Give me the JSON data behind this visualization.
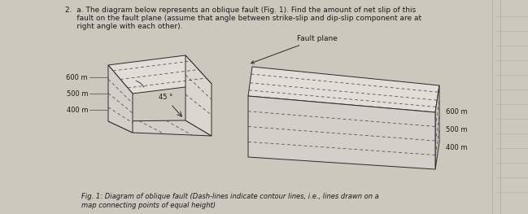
{
  "title_line1": "2.  a. The diagram below represents an oblique fault (Fig. 1). Find the amount of net slip of this",
  "title_line2": "     fault on the fault plane (assume that angle between strike-slip and dip-slip component are at",
  "title_line3": "     right angle with each other).",
  "fig_caption_line1": "Fig. 1: Diagram of oblique fault (Dash-lines indicate contour lines, i.e., lines drawn on a",
  "fig_caption_line2": "map connecting points of equal height)",
  "fault_plane_label": "Fault plane",
  "angle_label": "45 °",
  "left_labels": [
    "600 m",
    "500 m",
    "400 m"
  ],
  "right_labels": [
    "600 m",
    "500 m",
    "400 m"
  ],
  "bg_color": "#cdc8be",
  "block_face_top": "#e2ddd6",
  "block_face_front": "#d4cfc8",
  "block_face_side": "#c8c3bc",
  "line_color": "#2a2a2a",
  "dash_color": "#4a4a4a",
  "text_color": "#1a1a1a",
  "font_size": 6.5,
  "caption_font_size": 6.0
}
